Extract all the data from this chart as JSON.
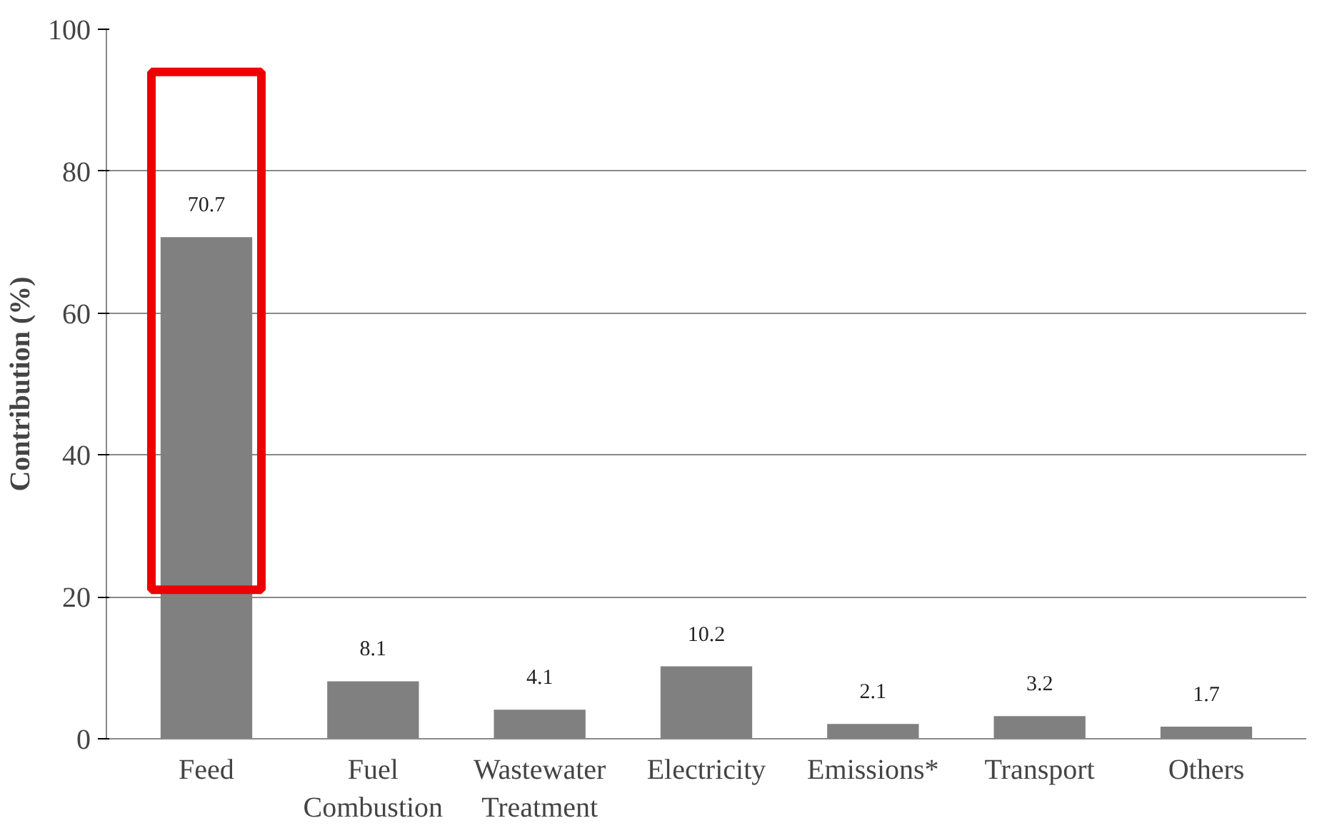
{
  "chart_data": {
    "type": "bar",
    "ylabel": "Contribution (%)",
    "categories": [
      "Feed",
      "Fuel\nCombustion",
      "Wastewater\nTreatment",
      "Electricity",
      "Emissions*",
      "Transport",
      "Others"
    ],
    "values": [
      70.7,
      8.1,
      4.1,
      10.2,
      2.1,
      3.2,
      1.7
    ],
    "color": "#808080",
    "data_labels": true,
    "ylim": [
      0,
      100
    ],
    "yticks": [
      0,
      20,
      40,
      60,
      80,
      100
    ],
    "grid": "y"
  }
}
